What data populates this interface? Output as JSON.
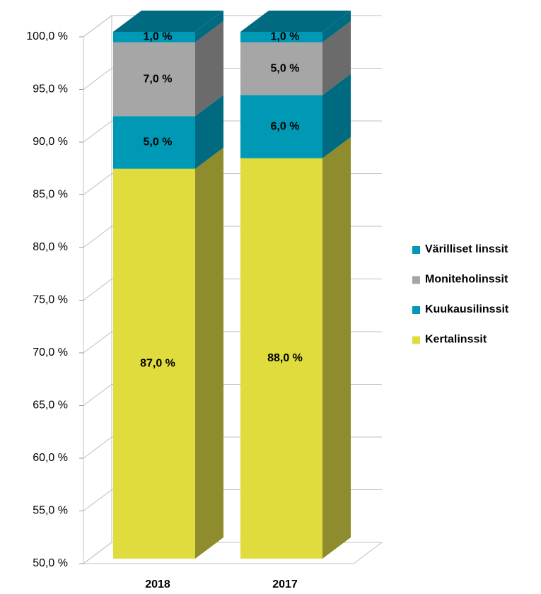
{
  "chart_data": {
    "type": "bar3d_stacked",
    "categories": [
      "2018",
      "2017"
    ],
    "series": [
      {
        "name": "Kertalinssit",
        "color": "#e0dc3e",
        "side": "#8e8c2c",
        "values": [
          87,
          88
        ],
        "value_labels": [
          "87,0 %",
          "88,0 %"
        ]
      },
      {
        "name": "Kuukausilinssit",
        "color": "#0099b5",
        "side": "#006b80",
        "values": [
          5,
          6
        ],
        "value_labels": [
          "5,0 %",
          "6,0 %"
        ]
      },
      {
        "name": "Moniteholinssit",
        "color": "#a6a6a6",
        "side": "#6b6b6b",
        "values": [
          7,
          5
        ],
        "value_labels": [
          "7,0 %",
          "5,0 %"
        ]
      },
      {
        "name": "Värilliset linssit",
        "color": "#0099b5",
        "side": "#006b80",
        "values": [
          1,
          1
        ],
        "value_labels": [
          "1,0 %",
          "1,0 %"
        ]
      }
    ],
    "ylim": [
      50,
      100
    ],
    "yticks": [
      {
        "value": 50,
        "label": "50,0 %"
      },
      {
        "value": 55,
        "label": "55,0 %"
      },
      {
        "value": 60,
        "label": "60,0 %"
      },
      {
        "value": 65,
        "label": "65,0 %"
      },
      {
        "value": 70,
        "label": "70,0 %"
      },
      {
        "value": 75,
        "label": "75,0 %"
      },
      {
        "value": 80,
        "label": "80,0 %"
      },
      {
        "value": 85,
        "label": "85,0 %"
      },
      {
        "value": 90,
        "label": "90,0 %"
      },
      {
        "value": 95,
        "label": "95,0 %"
      },
      {
        "value": 100,
        "label": "100,0 %"
      }
    ],
    "grid": true,
    "legend": "right"
  }
}
